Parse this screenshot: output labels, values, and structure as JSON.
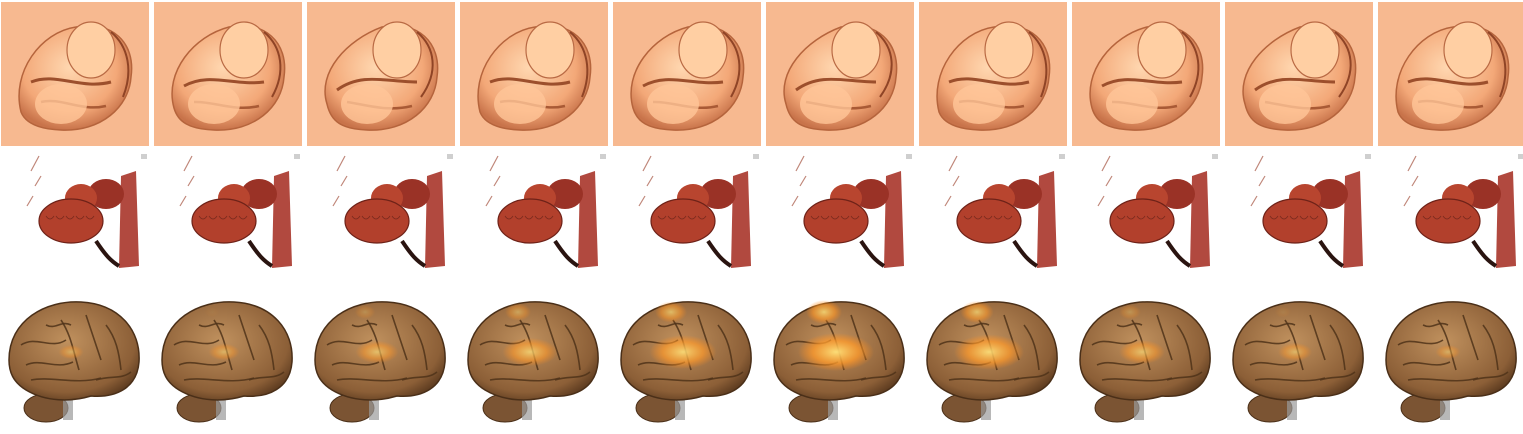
{
  "figure": {
    "rows": [
      {
        "subject": "fetus-ultrasound-render",
        "frames": 10,
        "background": "#f7b990",
        "tone": "#f3a878"
      },
      {
        "subject": "heart-ct-render",
        "frames": 10,
        "background": "#ffffff",
        "tone": "#b2402c"
      },
      {
        "subject": "brain-fmri-render",
        "frames": 10,
        "background": "#ffffff",
        "tone": "#8c5f37"
      }
    ],
    "brain_activation": [
      0.15,
      0.25,
      0.45,
      0.65,
      0.85,
      1.0,
      0.9,
      0.5,
      0.3,
      0.15
    ]
  }
}
